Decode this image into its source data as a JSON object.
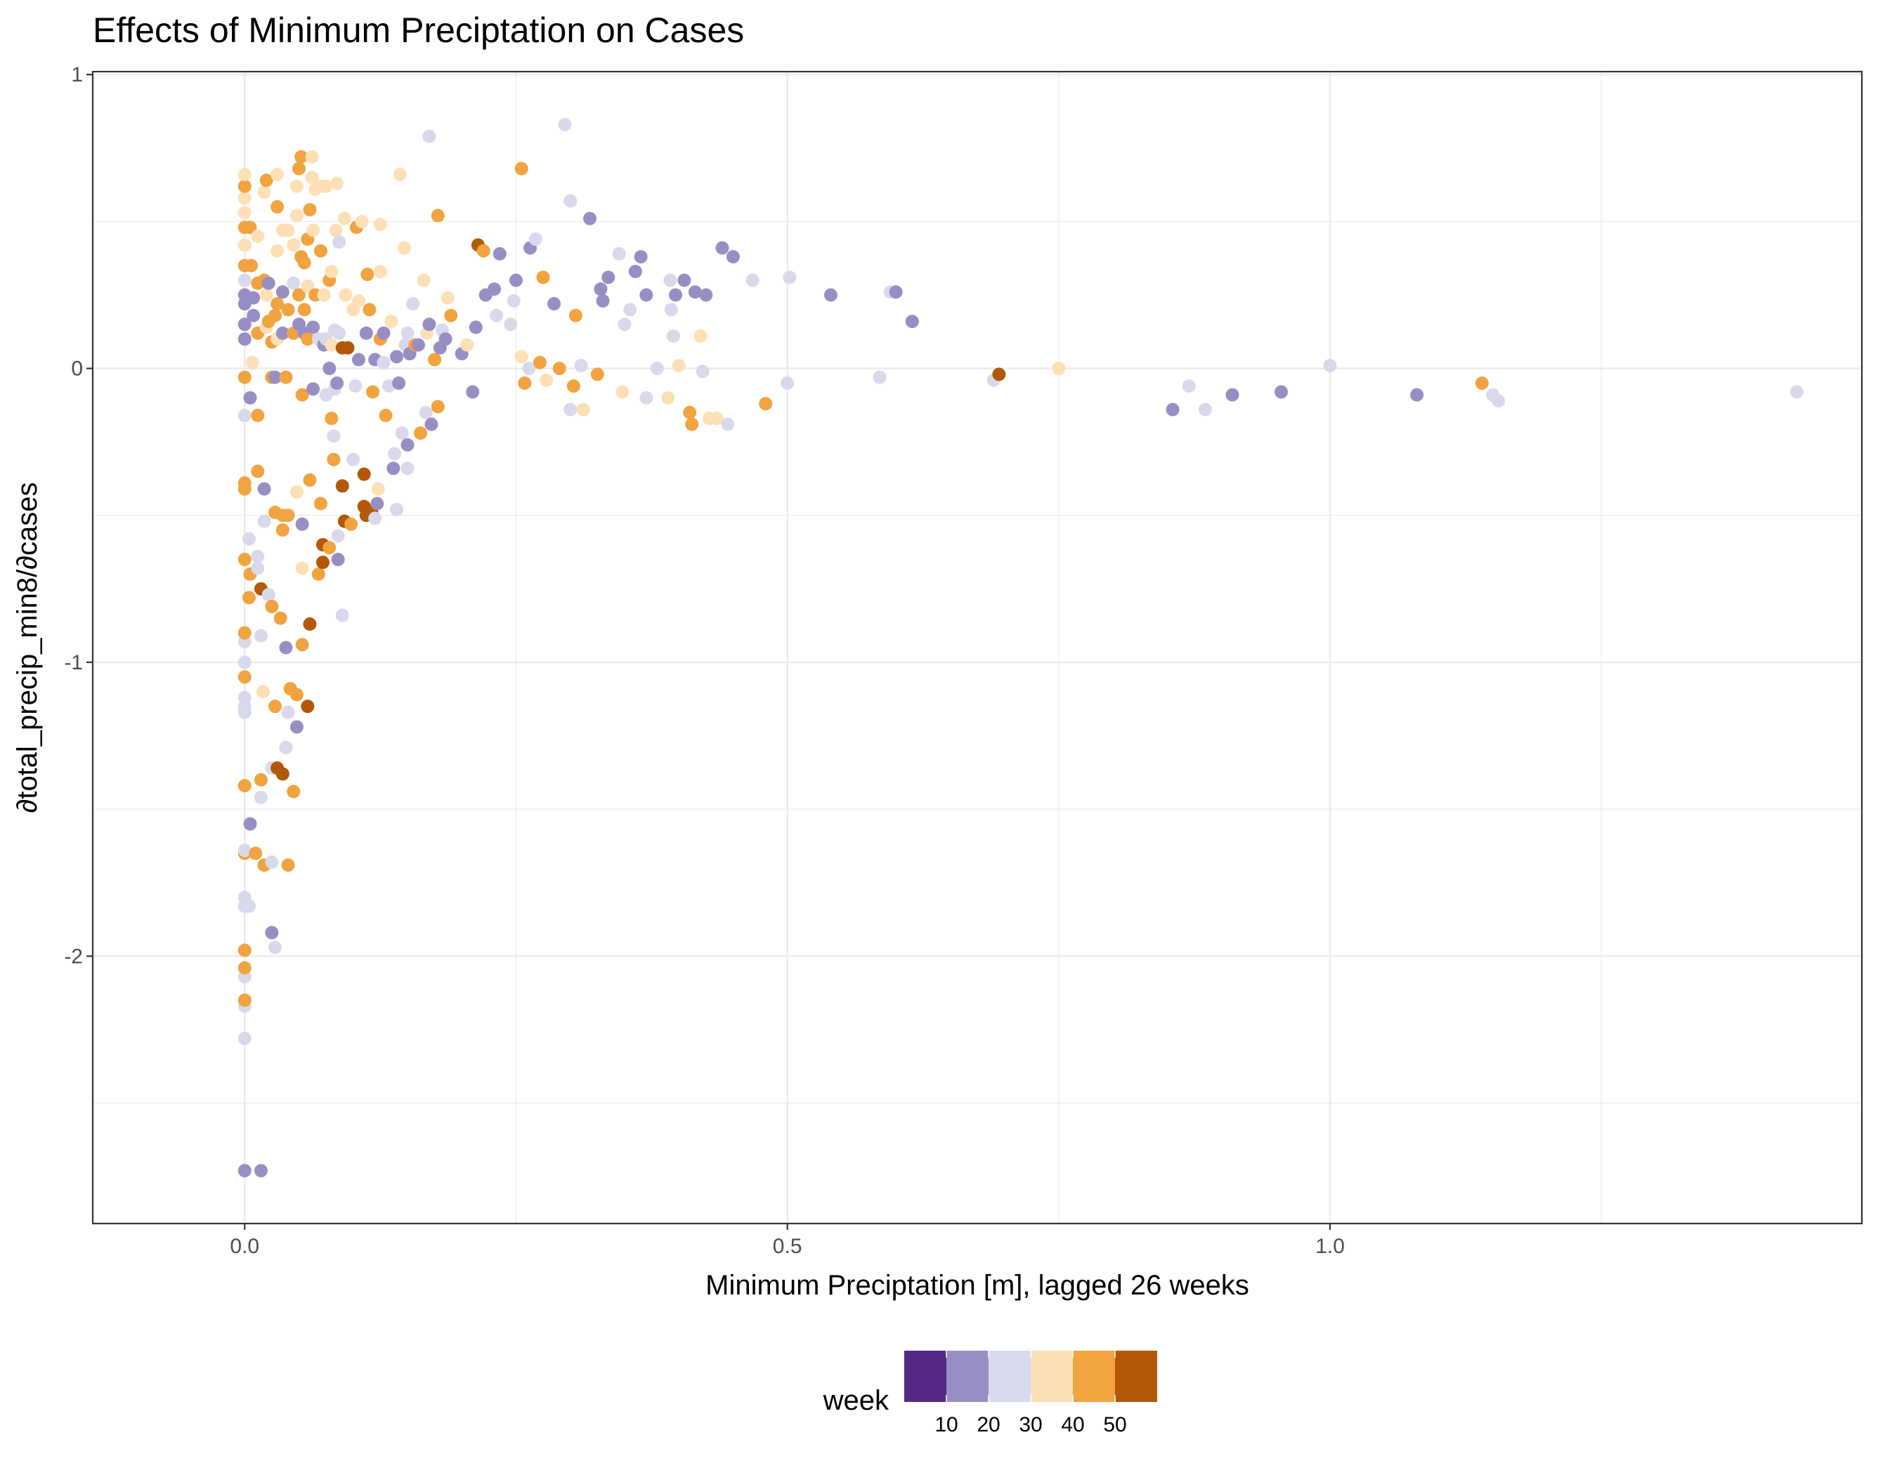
{
  "chart_data": {
    "type": "scatter",
    "title": "Effects of Minimum Preciptation on Cases",
    "xlabel": "Minimum Preciptation [m], lagged 26 weeks",
    "ylabel": "∂total_precip_min8/∂cases",
    "xlim": [
      -0.14,
      1.49
    ],
    "ylim": [
      -2.91,
      1.01
    ],
    "x_ticks": [
      0.0,
      0.5,
      1.0
    ],
    "x_tick_labels": [
      "0.0",
      "0.5",
      "1.0"
    ],
    "y_ticks": [
      -2,
      -1,
      0,
      1
    ],
    "y_tick_labels": [
      "-2",
      "-1",
      "0",
      "1"
    ],
    "grid": true,
    "legend": {
      "title": "week",
      "position": "bottom",
      "labels": [
        "10",
        "20",
        "30",
        "40",
        "50"
      ],
      "colors": [
        "#542788",
        "#998ec3",
        "#d8daeb",
        "#fee0b6",
        "#f1a340",
        "#b35806"
      ]
    },
    "points": [
      [
        0.0,
        -2.73,
        1
      ],
      [
        0.0,
        -2.28,
        2
      ],
      [
        0.0,
        -2.17,
        2
      ],
      [
        0.0,
        -2.15,
        4
      ],
      [
        0.0,
        -2.07,
        2
      ],
      [
        0.0,
        -2.04,
        4
      ],
      [
        0.0,
        -1.98,
        4
      ],
      [
        0.0,
        -1.83,
        2
      ],
      [
        0.0,
        -1.8,
        2
      ],
      [
        0.0,
        -1.65,
        4
      ],
      [
        0.0,
        -1.64,
        2
      ],
      [
        0.0,
        -1.42,
        4
      ],
      [
        0.0,
        -1.17,
        2
      ],
      [
        0.0,
        -1.15,
        2
      ],
      [
        0.0,
        -1.12,
        2
      ],
      [
        0.0,
        -1.05,
        4
      ],
      [
        0.0,
        -1.0,
        2
      ],
      [
        0.0,
        -0.93,
        2
      ],
      [
        0.0,
        -0.9,
        4
      ],
      [
        0.0,
        -0.65,
        4
      ],
      [
        0.0,
        -0.41,
        4
      ],
      [
        0.0,
        -0.39,
        4
      ],
      [
        0.0,
        -0.16,
        2
      ],
      [
        0.0,
        -0.03,
        4
      ],
      [
        0.0,
        0.1,
        1
      ],
      [
        0.0,
        0.15,
        1
      ],
      [
        0.0,
        0.22,
        1
      ],
      [
        0.0,
        0.25,
        1
      ],
      [
        0.0,
        0.3,
        2
      ],
      [
        0.0,
        0.35,
        4
      ],
      [
        0.0,
        0.42,
        3
      ],
      [
        0.0,
        0.48,
        4
      ],
      [
        0.0,
        0.53,
        3
      ],
      [
        0.0,
        0.58,
        3
      ],
      [
        0.0,
        0.62,
        4
      ],
      [
        0.0,
        0.66,
        3
      ],
      [
        0.004,
        -1.83,
        2
      ],
      [
        0.005,
        -1.55,
        1
      ],
      [
        0.004,
        -0.78,
        4
      ],
      [
        0.005,
        -0.7,
        4
      ],
      [
        0.004,
        -0.58,
        2
      ],
      [
        0.005,
        -0.1,
        1
      ],
      [
        0.007,
        0.02,
        3
      ],
      [
        0.006,
        0.35,
        4
      ],
      [
        0.005,
        0.48,
        4
      ],
      [
        0.008,
        0.18,
        1
      ],
      [
        0.008,
        0.24,
        1
      ],
      [
        0.01,
        -1.65,
        4
      ],
      [
        0.012,
        -0.68,
        2
      ],
      [
        0.012,
        -0.64,
        2
      ],
      [
        0.012,
        -0.35,
        4
      ],
      [
        0.012,
        -0.16,
        4
      ],
      [
        0.012,
        0.12,
        4
      ],
      [
        0.012,
        0.29,
        4
      ],
      [
        0.012,
        0.45,
        3
      ],
      [
        0.015,
        -2.73,
        1
      ],
      [
        0.015,
        -1.46,
        2
      ],
      [
        0.015,
        -1.4,
        4
      ],
      [
        0.015,
        -0.91,
        2
      ],
      [
        0.017,
        -1.1,
        3
      ],
      [
        0.015,
        -0.75,
        5
      ],
      [
        0.018,
        -1.69,
        4
      ],
      [
        0.018,
        -0.41,
        1
      ],
      [
        0.018,
        -0.52,
        2
      ],
      [
        0.018,
        0.3,
        4
      ],
      [
        0.018,
        0.6,
        3
      ],
      [
        0.02,
        0.64,
        4
      ],
      [
        0.02,
        0.14,
        3
      ],
      [
        0.02,
        0.25,
        3
      ],
      [
        0.022,
        -0.77,
        2
      ],
      [
        0.022,
        0.16,
        4
      ],
      [
        0.022,
        0.29,
        1
      ],
      [
        0.025,
        -1.92,
        1
      ],
      [
        0.025,
        -1.68,
        2
      ],
      [
        0.025,
        -1.36,
        2
      ],
      [
        0.025,
        -0.81,
        4
      ],
      [
        0.025,
        -0.03,
        4
      ],
      [
        0.025,
        0.09,
        4
      ],
      [
        0.028,
        -1.97,
        2
      ],
      [
        0.028,
        -1.15,
        4
      ],
      [
        0.028,
        -0.49,
        4
      ],
      [
        0.028,
        -0.03,
        1
      ],
      [
        0.028,
        0.18,
        4
      ],
      [
        0.03,
        0.1,
        3
      ],
      [
        0.03,
        0.22,
        4
      ],
      [
        0.03,
        0.4,
        3
      ],
      [
        0.03,
        0.55,
        4
      ],
      [
        0.03,
        0.66,
        3
      ],
      [
        0.03,
        -1.36,
        5
      ],
      [
        0.033,
        -0.85,
        4
      ],
      [
        0.035,
        -1.38,
        5
      ],
      [
        0.035,
        -0.5,
        4
      ],
      [
        0.035,
        -0.55,
        4
      ],
      [
        0.035,
        0.12,
        1
      ],
      [
        0.035,
        0.26,
        1
      ],
      [
        0.035,
        0.47,
        3
      ],
      [
        0.038,
        -0.03,
        4
      ],
      [
        0.038,
        -0.95,
        1
      ],
      [
        0.038,
        -1.29,
        2
      ],
      [
        0.04,
        -1.69,
        4
      ],
      [
        0.04,
        -1.17,
        2
      ],
      [
        0.04,
        -0.5,
        4
      ],
      [
        0.04,
        0.2,
        4
      ],
      [
        0.04,
        0.47,
        3
      ],
      [
        0.042,
        -1.09,
        4
      ],
      [
        0.045,
        -1.44,
        4
      ],
      [
        0.045,
        0.12,
        4
      ],
      [
        0.045,
        0.29,
        2
      ],
      [
        0.045,
        0.42,
        3
      ],
      [
        0.048,
        -1.22,
        1
      ],
      [
        0.048,
        -1.11,
        4
      ],
      [
        0.048,
        -0.42,
        3
      ],
      [
        0.048,
        0.52,
        3
      ],
      [
        0.048,
        0.62,
        3
      ],
      [
        0.05,
        0.15,
        1
      ],
      [
        0.05,
        0.25,
        4
      ],
      [
        0.05,
        0.68,
        4
      ],
      [
        0.052,
        0.72,
        4
      ],
      [
        0.052,
        0.38,
        4
      ],
      [
        0.053,
        -0.94,
        4
      ],
      [
        0.053,
        -0.68,
        3
      ],
      [
        0.053,
        -0.53,
        1
      ],
      [
        0.053,
        -0.09,
        4
      ],
      [
        0.055,
        0.12,
        1
      ],
      [
        0.055,
        0.2,
        4
      ],
      [
        0.055,
        0.36,
        4
      ],
      [
        0.058,
        -1.15,
        5
      ],
      [
        0.058,
        0.1,
        4
      ],
      [
        0.058,
        0.28,
        3
      ],
      [
        0.058,
        0.44,
        4
      ],
      [
        0.06,
        -0.87,
        5
      ],
      [
        0.06,
        -0.38,
        4
      ],
      [
        0.06,
        0.54,
        4
      ],
      [
        0.062,
        0.65,
        3
      ],
      [
        0.062,
        0.72,
        3
      ],
      [
        0.063,
        -0.07,
        1
      ],
      [
        0.063,
        0.14,
        1
      ],
      [
        0.063,
        0.47,
        3
      ],
      [
        0.065,
        0.61,
        3
      ],
      [
        0.065,
        0.25,
        4
      ],
      [
        0.068,
        -0.7,
        4
      ],
      [
        0.068,
        0.1,
        2
      ],
      [
        0.07,
        -0.46,
        4
      ],
      [
        0.07,
        0.4,
        4
      ],
      [
        0.07,
        0.62,
        3
      ],
      [
        0.072,
        -0.66,
        5
      ],
      [
        0.072,
        -0.6,
        5
      ],
      [
        0.073,
        0.08,
        1
      ],
      [
        0.073,
        0.25,
        3
      ],
      [
        0.075,
        -0.09,
        2
      ],
      [
        0.075,
        0.1,
        2
      ],
      [
        0.075,
        0.62,
        3
      ],
      [
        0.078,
        -0.61,
        4
      ],
      [
        0.078,
        0.0,
        1
      ],
      [
        0.078,
        0.3,
        4
      ],
      [
        0.08,
        -0.17,
        4
      ],
      [
        0.08,
        0.08,
        3
      ],
      [
        0.08,
        0.33,
        3
      ],
      [
        0.082,
        -0.31,
        4
      ],
      [
        0.082,
        -0.23,
        2
      ],
      [
        0.083,
        -0.07,
        2
      ],
      [
        0.083,
        0.13,
        2
      ],
      [
        0.084,
        0.47,
        3
      ],
      [
        0.085,
        -0.05,
        1
      ],
      [
        0.085,
        0.63,
        3
      ],
      [
        0.086,
        -0.65,
        1
      ],
      [
        0.086,
        -0.57,
        2
      ],
      [
        0.087,
        0.12,
        2
      ],
      [
        0.087,
        0.43,
        2
      ],
      [
        0.09,
        -0.4,
        5
      ],
      [
        0.09,
        -0.84,
        2
      ],
      [
        0.09,
        0.07,
        5
      ],
      [
        0.092,
        -0.52,
        5
      ],
      [
        0.092,
        0.51,
        3
      ],
      [
        0.093,
        0.25,
        3
      ],
      [
        0.095,
        0.07,
        5
      ],
      [
        0.098,
        -0.53,
        4
      ],
      [
        0.1,
        -0.31,
        2
      ],
      [
        0.1,
        0.2,
        3
      ],
      [
        0.102,
        -0.06,
        2
      ],
      [
        0.103,
        0.48,
        4
      ],
      [
        0.105,
        0.03,
        1
      ],
      [
        0.105,
        0.23,
        3
      ],
      [
        0.108,
        0.5,
        3
      ],
      [
        0.11,
        -0.36,
        5
      ],
      [
        0.11,
        -0.47,
        5
      ],
      [
        0.112,
        -0.5,
        5
      ],
      [
        0.112,
        0.12,
        1
      ],
      [
        0.113,
        0.32,
        4
      ],
      [
        0.115,
        0.2,
        4
      ],
      [
        0.117,
        -0.49,
        5
      ],
      [
        0.118,
        -0.08,
        4
      ],
      [
        0.12,
        -0.51,
        2
      ],
      [
        0.12,
        0.03,
        1
      ],
      [
        0.122,
        -0.46,
        1
      ],
      [
        0.123,
        -0.41,
        3
      ],
      [
        0.125,
        0.1,
        4
      ],
      [
        0.125,
        0.33,
        3
      ],
      [
        0.125,
        0.49,
        3
      ],
      [
        0.128,
        0.02,
        2
      ],
      [
        0.128,
        0.12,
        1
      ],
      [
        0.13,
        -0.16,
        4
      ],
      [
        0.133,
        -0.06,
        2
      ],
      [
        0.135,
        0.16,
        3
      ],
      [
        0.137,
        -0.34,
        1
      ],
      [
        0.138,
        -0.29,
        2
      ],
      [
        0.14,
        -0.48,
        2
      ],
      [
        0.14,
        0.04,
        1
      ],
      [
        0.142,
        -0.05,
        1
      ],
      [
        0.143,
        0.66,
        3
      ],
      [
        0.145,
        -0.22,
        2
      ],
      [
        0.147,
        0.41,
        3
      ],
      [
        0.148,
        0.08,
        2
      ],
      [
        0.15,
        -0.34,
        2
      ],
      [
        0.15,
        -0.26,
        1
      ],
      [
        0.15,
        0.12,
        2
      ],
      [
        0.152,
        0.05,
        1
      ],
      [
        0.155,
        0.22,
        2
      ],
      [
        0.157,
        0.08,
        4
      ],
      [
        0.16,
        0.08,
        1
      ],
      [
        0.162,
        -0.22,
        4
      ],
      [
        0.165,
        0.3,
        3
      ],
      [
        0.167,
        -0.15,
        2
      ],
      [
        0.168,
        0.12,
        3
      ],
      [
        0.17,
        0.79,
        2
      ],
      [
        0.17,
        0.15,
        1
      ],
      [
        0.172,
        -0.19,
        1
      ],
      [
        0.175,
        0.03,
        4
      ],
      [
        0.178,
        0.52,
        4
      ],
      [
        0.178,
        -0.13,
        4
      ],
      [
        0.18,
        0.07,
        1
      ],
      [
        0.182,
        0.13,
        2
      ],
      [
        0.185,
        0.1,
        1
      ],
      [
        0.187,
        0.24,
        3
      ],
      [
        0.19,
        0.18,
        4
      ],
      [
        0.2,
        0.05,
        1
      ],
      [
        0.205,
        0.08,
        3
      ],
      [
        0.21,
        -0.08,
        1
      ],
      [
        0.213,
        0.14,
        1
      ],
      [
        0.215,
        0.42,
        5
      ],
      [
        0.22,
        0.4,
        4
      ],
      [
        0.222,
        0.25,
        1
      ],
      [
        0.23,
        0.27,
        1
      ],
      [
        0.232,
        0.18,
        2
      ],
      [
        0.235,
        0.39,
        1
      ],
      [
        0.245,
        0.15,
        2
      ],
      [
        0.248,
        0.23,
        2
      ],
      [
        0.25,
        0.3,
        1
      ],
      [
        0.255,
        0.68,
        4
      ],
      [
        0.255,
        0.04,
        3
      ],
      [
        0.258,
        -0.05,
        4
      ],
      [
        0.262,
        0.0,
        2
      ],
      [
        0.263,
        0.41,
        1
      ],
      [
        0.268,
        0.44,
        2
      ],
      [
        0.272,
        0.02,
        4
      ],
      [
        0.275,
        0.31,
        4
      ],
      [
        0.278,
        -0.04,
        3
      ],
      [
        0.285,
        0.22,
        1
      ],
      [
        0.29,
        0.0,
        4
      ],
      [
        0.295,
        0.83,
        2
      ],
      [
        0.3,
        0.57,
        2
      ],
      [
        0.3,
        -0.14,
        2
      ],
      [
        0.303,
        -0.06,
        4
      ],
      [
        0.305,
        0.18,
        4
      ],
      [
        0.31,
        0.01,
        2
      ],
      [
        0.312,
        -0.14,
        3
      ],
      [
        0.318,
        0.51,
        1
      ],
      [
        0.325,
        -0.02,
        4
      ],
      [
        0.328,
        0.27,
        1
      ],
      [
        0.33,
        0.23,
        1
      ],
      [
        0.335,
        0.31,
        1
      ],
      [
        0.345,
        0.39,
        2
      ],
      [
        0.348,
        -0.08,
        3
      ],
      [
        0.35,
        0.15,
        2
      ],
      [
        0.355,
        0.2,
        2
      ],
      [
        0.36,
        0.33,
        1
      ],
      [
        0.365,
        0.38,
        1
      ],
      [
        0.37,
        0.25,
        1
      ],
      [
        0.37,
        -0.1,
        2
      ],
      [
        0.38,
        0.0,
        2
      ],
      [
        0.39,
        -0.1,
        3
      ],
      [
        0.392,
        0.3,
        2
      ],
      [
        0.393,
        0.2,
        2
      ],
      [
        0.395,
        0.11,
        2
      ],
      [
        0.397,
        0.25,
        1
      ],
      [
        0.4,
        0.01,
        3
      ],
      [
        0.405,
        0.3,
        1
      ],
      [
        0.41,
        -0.15,
        4
      ],
      [
        0.412,
        -0.19,
        4
      ],
      [
        0.415,
        0.26,
        1
      ],
      [
        0.42,
        0.11,
        3
      ],
      [
        0.422,
        -0.01,
        2
      ],
      [
        0.425,
        0.25,
        1
      ],
      [
        0.428,
        -0.17,
        3
      ],
      [
        0.435,
        -0.17,
        3
      ],
      [
        0.44,
        0.41,
        1
      ],
      [
        0.445,
        -0.19,
        2
      ],
      [
        0.45,
        0.38,
        1
      ],
      [
        0.468,
        0.3,
        2
      ],
      [
        0.48,
        -0.12,
        4
      ],
      [
        0.5,
        -0.05,
        2
      ],
      [
        0.502,
        0.31,
        2
      ],
      [
        0.54,
        0.25,
        1
      ],
      [
        0.585,
        -0.03,
        2
      ],
      [
        0.595,
        0.26,
        2
      ],
      [
        0.6,
        0.26,
        1
      ],
      [
        0.615,
        0.16,
        1
      ],
      [
        0.69,
        -0.04,
        2
      ],
      [
        0.695,
        -0.02,
        5
      ],
      [
        0.75,
        0.0,
        3
      ],
      [
        0.855,
        -0.14,
        1
      ],
      [
        0.87,
        -0.06,
        2
      ],
      [
        0.885,
        -0.14,
        2
      ],
      [
        0.91,
        -0.09,
        1
      ],
      [
        0.955,
        -0.08,
        1
      ],
      [
        1.0,
        0.01,
        2
      ],
      [
        1.08,
        -0.09,
        1
      ],
      [
        1.14,
        -0.05,
        4
      ],
      [
        1.15,
        -0.09,
        2
      ],
      [
        1.155,
        -0.11,
        2
      ],
      [
        1.43,
        -0.08,
        2
      ]
    ]
  }
}
